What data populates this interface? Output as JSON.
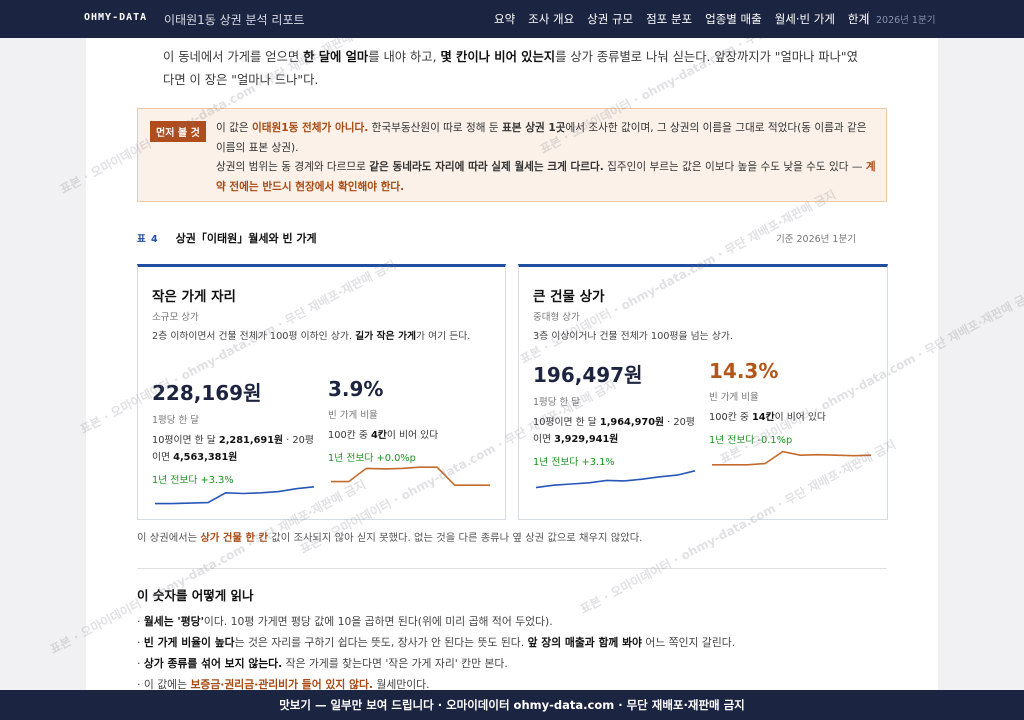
{
  "header": {
    "brand": "OHMY-DATA",
    "subtitle": "이태원1동 상권 분석 리포트",
    "nav": [
      "요약",
      "조사 개요",
      "상권 규모",
      "점포 분포",
      "업종별 매출",
      "월세·빈 가게",
      "한계"
    ],
    "date": "2026년 1분기"
  },
  "intro": {
    "p1_a": "이 동네에서 가게를 얻으면 ",
    "p1_b": "한 달에 얼마",
    "p1_c": "를 내야 하고, ",
    "p1_d": "몇 칸이나 비어 있는지",
    "p1_e": "를 상가 종류별로 나눠 싣는다. 앞장까지가 \"얼마나 파나\"였다면 이 장은 \"얼마나 드나\"다."
  },
  "warning": {
    "tag": "먼저 볼 것",
    "l1_a": "이 값은 ",
    "l1_b": "이태원1동 전체가 아니다.",
    "l1_c": " 한국부동산원이 따로 정해 둔 ",
    "l1_d": "표본 상권 1곳",
    "l1_e": "에서 조사한 값이며, 그 상권의 이름을 그대로 적었다(동 이름과 같은 이름의 표본 상권).",
    "l2_a": "상권의 범위는 동 경계와 다르므로 ",
    "l2_b": "같은 동네라도 자리에 따라 실제 월세는 크게 다르다.",
    "l2_c": " 집주인이 부르는 값은 이보다 높을 수도 낮을 수도 있다 — ",
    "l2_d": "계약 전에는 반드시 현장에서 확인해야 한다."
  },
  "table": {
    "num": "표 4",
    "title": "상권「이태원」월세와 빈 가게",
    "base": "기준 2026년 1분기"
  },
  "small_card": {
    "title": "작은 가게 자리",
    "sub": "소규모 상가",
    "desc_a": "2층 이하이면서 건물 전체가 100평 이하인 상가. ",
    "desc_b": "길가 작은 가게",
    "desc_c": "가 여기 든다.",
    "rent_value": "228,169원",
    "rent_caption": "1평당 한 달",
    "rent_detail_a": "10평이면 한 달 ",
    "rent_detail_b": "2,281,691원",
    "rent_detail_c": " · 20평이면 ",
    "rent_detail_d": "4,563,381원",
    "rent_delta": "1년 전보다 +3.3%",
    "vac_value": "3.9%",
    "vac_caption": "빈 가게 비율",
    "vac_detail_a": "100칸 중 ",
    "vac_detail_b": "4칸",
    "vac_detail_c": "이 비어 있다",
    "vac_delta": "1년 전보다 +0.0%p"
  },
  "large_card": {
    "title": "큰 건물 상가",
    "sub": "중대형 상가",
    "desc": "3층 이상이거나 건물 전체가 100평을 넘는 상가.",
    "rent_value": "196,497원",
    "rent_caption": "1평당 한 달",
    "rent_detail_a": "10평이면 한 달 ",
    "rent_detail_b": "1,964,970원",
    "rent_detail_c": " · 20평이면 ",
    "rent_detail_d": "3,929,941원",
    "rent_delta": "1년 전보다 +3.1%",
    "vac_value": "14.3%",
    "vac_caption": "빈 가게 비율",
    "vac_detail_a": "100칸 중 ",
    "vac_detail_b": "14칸",
    "vac_detail_c": "이 비어 있다",
    "vac_delta": "1년 전보다 -0.1%p"
  },
  "footnote": {
    "a": "이 상권에서는 ",
    "b": "상가 건물 한 칸",
    "c": " 값이 조사되지 않아 싣지 못했다. 없는 것을 다른 종류나 옆 상권 값으로 채우지 않았다."
  },
  "howto": {
    "title": "이 숫자를 어떻게 읽나",
    "b1_a": "· ",
    "b1_b": "월세는 '평당'",
    "b1_c": "이다. 10평 가게면 평당 값에 10을 곱하면 된다(위에 미리 곱해 적어 두었다).",
    "b2_a": "· ",
    "b2_b": "빈 가게 비율이 높다",
    "b2_c": "는 것은 자리를 구하기 쉽다는 뜻도, 장사가 안 된다는 뜻도 된다. ",
    "b2_d": "앞 장의 매출과 함께 봐야",
    "b2_e": " 어느 쪽인지 갈린다.",
    "b3_a": "· ",
    "b3_b": "상가 종류를 섞어 보지 않는다.",
    "b3_c": " 작은 가게를 찾는다면 '작은 가게 자리' 칸만 본다.",
    "b4_a": "· 이 값에는 ",
    "b4_b": "보증금·권리금·관리비가 들어 있지 않다.",
    "b4_c": " 월세만이다."
  },
  "watermark": "표본 · 오마이데이터 · ohmy-data.com · 무단 재배포·재판매 금지",
  "banner": "맛보기 — 일부만 보여 드립니다 · 오마이데이터 ohmy-data.com · 무단 재배포·재판매 금지",
  "sparklines": {
    "small_rent": [
      0.1,
      0.1,
      0.12,
      0.14,
      0.55,
      0.52,
      0.55,
      0.6,
      0.72,
      0.8
    ],
    "small_vac": [
      0.35,
      0.35,
      0.9,
      0.88,
      0.9,
      0.95,
      0.95,
      0.2,
      0.2,
      0.2
    ],
    "large_rent": [
      0.1,
      0.2,
      0.25,
      0.3,
      0.4,
      0.38,
      0.45,
      0.55,
      0.62,
      0.8
    ],
    "large_vac": [
      0.3,
      0.3,
      0.3,
      0.35,
      0.85,
      0.7,
      0.72,
      0.7,
      0.68,
      0.7
    ],
    "rent_color": "#2756b8",
    "vac_color": "#c46a2b"
  }
}
